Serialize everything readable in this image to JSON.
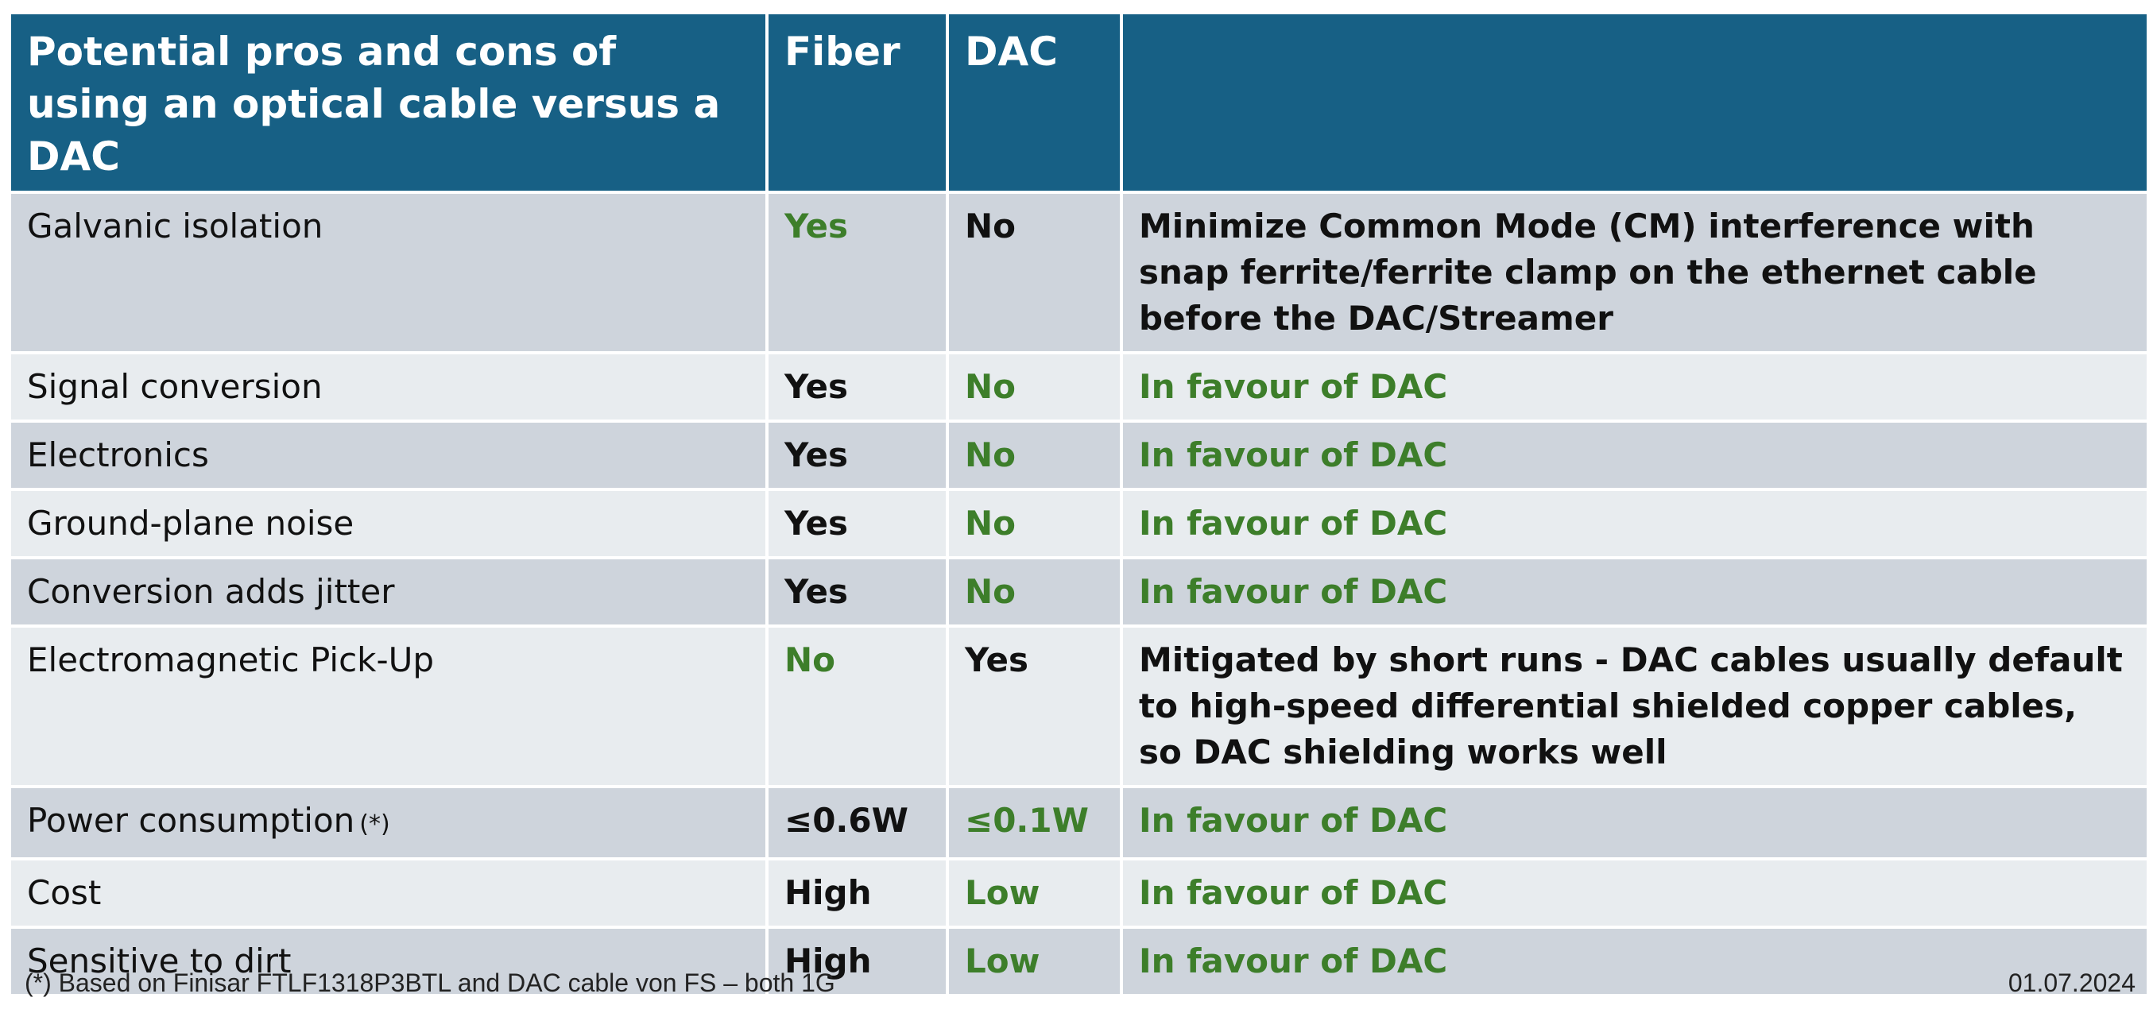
{
  "table": {
    "header": {
      "col1": "Potential pros and cons of using an optical cable versus a DAC",
      "col2": "Fiber",
      "col3": "DAC",
      "col4": ""
    },
    "rows": [
      {
        "feature": "Galvanic isolation",
        "feature_note": "",
        "fiber": "Yes",
        "dac": "No",
        "note": "Minimize Common Mode (CM) interference with snap ferrite/ferrite clamp on the ethernet cable before the DAC/Streamer",
        "fiber_highlight": true,
        "dac_highlight": false,
        "note_highlight": false
      },
      {
        "feature": "Signal conversion",
        "feature_note": "",
        "fiber": "Yes",
        "dac": "No",
        "note": "In favour of DAC",
        "fiber_highlight": false,
        "dac_highlight": true,
        "note_highlight": true
      },
      {
        "feature": "Electronics",
        "feature_note": "",
        "fiber": "Yes",
        "dac": "No",
        "note": "In favour of DAC",
        "fiber_highlight": false,
        "dac_highlight": true,
        "note_highlight": true
      },
      {
        "feature": "Ground-plane noise",
        "feature_note": "",
        "fiber": "Yes",
        "dac": "No",
        "note": "In favour of DAC",
        "fiber_highlight": false,
        "dac_highlight": true,
        "note_highlight": true
      },
      {
        "feature": "Conversion adds jitter",
        "feature_note": "",
        "fiber": "Yes",
        "dac": "No",
        "note": "In favour of DAC",
        "fiber_highlight": false,
        "dac_highlight": true,
        "note_highlight": true
      },
      {
        "feature": "Electromagnetic Pick-Up",
        "feature_note": "",
        "fiber": "No",
        "dac": "Yes",
        "note": "Mitigated by short runs - DAC cables usually default to high-speed differential shielded copper cables, so DAC shielding works well",
        "fiber_highlight": true,
        "dac_highlight": false,
        "note_highlight": false
      },
      {
        "feature": "Power consumption",
        "feature_note": "(*)",
        "fiber": "≤0.6W",
        "dac": "≤0.1W",
        "note": "In favour of DAC",
        "fiber_highlight": false,
        "dac_highlight": true,
        "note_highlight": true
      },
      {
        "feature": "Cost",
        "feature_note": "",
        "fiber": "High",
        "dac": "Low",
        "note": "In favour of DAC",
        "fiber_highlight": false,
        "dac_highlight": true,
        "note_highlight": true
      },
      {
        "feature": "Sensitive to dirt",
        "feature_note": "",
        "fiber": "High",
        "dac": "Low",
        "note": "In favour of DAC",
        "fiber_highlight": false,
        "dac_highlight": true,
        "note_highlight": true
      }
    ]
  },
  "footer": {
    "footnote": "(*) Based on Finisar FTLF1318P3BTL and DAC cable von FS – both 1G",
    "date": "01.07.2024"
  },
  "colors": {
    "header_bg": "#176085",
    "row_dark": "#ced4dc",
    "row_light": "#e8ecef",
    "favourable_green": "#3d7e2a"
  }
}
